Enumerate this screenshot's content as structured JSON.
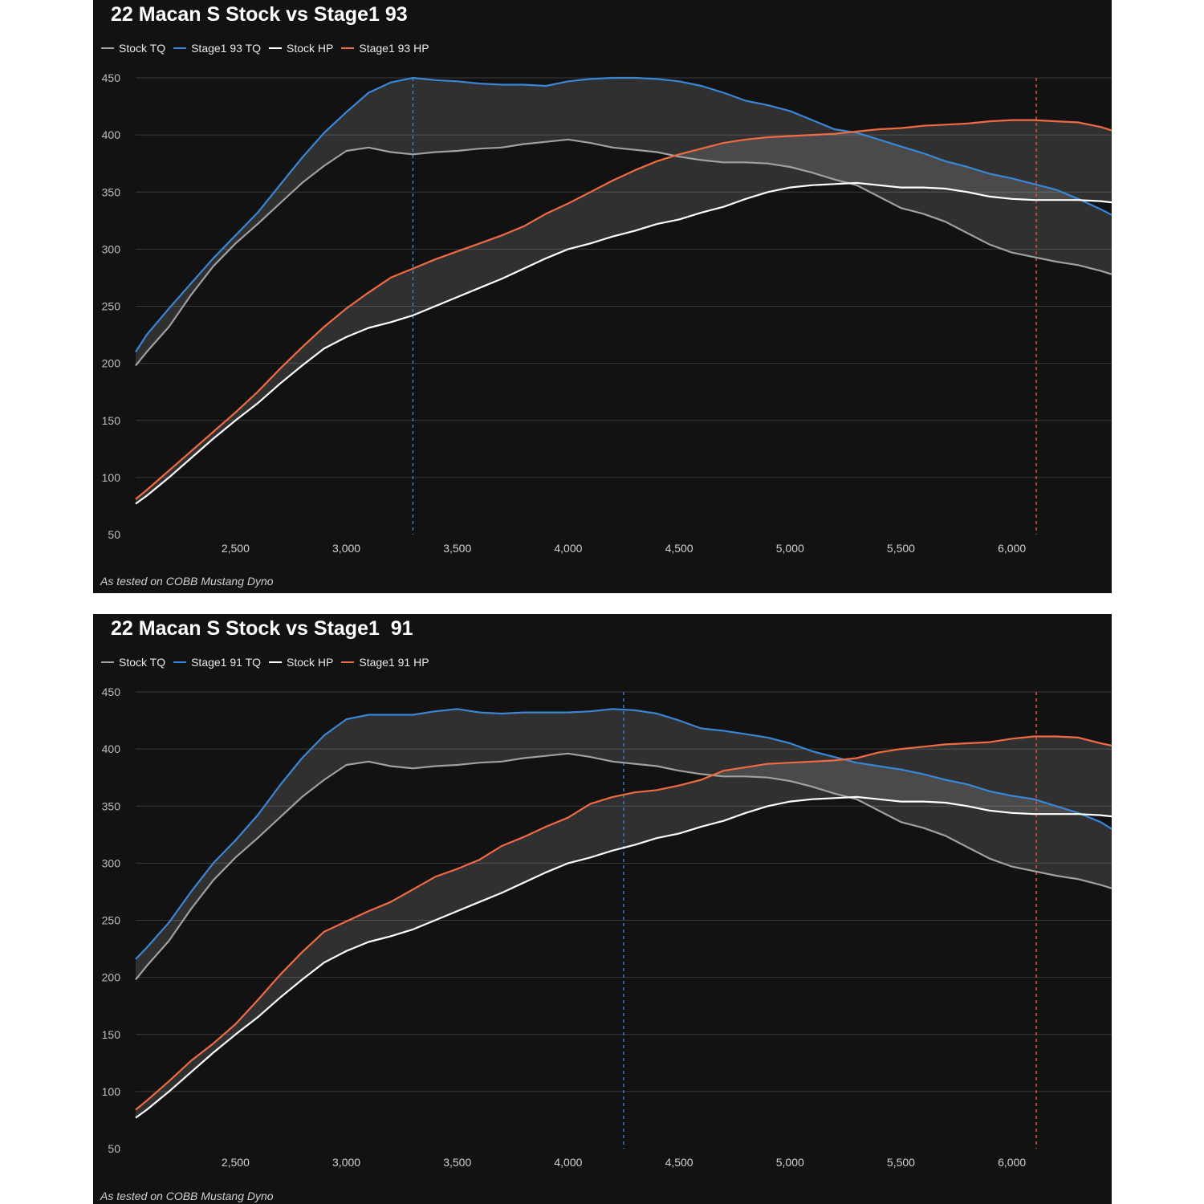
{
  "chart_data": [
    {
      "type": "line",
      "title": "22 Macan S Stock vs Stage1 93",
      "footnote": "As tested on COBB Mustang Dyno",
      "xlabel": "",
      "ylabel": "",
      "xlim": [
        2050,
        6450
      ],
      "ylim": [
        50,
        450
      ],
      "x_ticks": [
        2500,
        3000,
        3500,
        4000,
        4500,
        5000,
        5500,
        6000
      ],
      "x_tick_labels": [
        "2,500",
        "3,000",
        "3,500",
        "4,000",
        "4,500",
        "5,000",
        "5,500",
        "6,000"
      ],
      "y_ticks": [
        50,
        100,
        150,
        200,
        250,
        300,
        350,
        400,
        450
      ],
      "y_tick_labels": [
        "50",
        "100",
        "150",
        "200",
        "250",
        "300",
        "350",
        "400",
        "450"
      ],
      "grid": true,
      "legend_position": "top-left",
      "markers": [
        {
          "x": 3300,
          "color": "#3a7bbf"
        },
        {
          "x": 6110,
          "color": "#d2573a"
        }
      ],
      "bands": [
        [
          0,
          1
        ],
        [
          2,
          3
        ]
      ],
      "series": [
        {
          "name": "Stock TQ",
          "color": "#a0a0a0",
          "x": [
            2050,
            2100,
            2200,
            2300,
            2400,
            2500,
            2600,
            2700,
            2800,
            2900,
            3000,
            3100,
            3200,
            3300,
            3400,
            3500,
            3600,
            3700,
            3800,
            3900,
            4000,
            4100,
            4200,
            4300,
            4400,
            4500,
            4600,
            4700,
            4800,
            4900,
            5000,
            5100,
            5200,
            5300,
            5400,
            5500,
            5600,
            5700,
            5800,
            5900,
            6000,
            6100,
            6200,
            6300,
            6400,
            6450
          ],
          "values": [
            198,
            210,
            232,
            260,
            285,
            305,
            322,
            340,
            358,
            373,
            386,
            389,
            385,
            383,
            385,
            386,
            388,
            389,
            392,
            394,
            396,
            393,
            389,
            387,
            385,
            381,
            378,
            376,
            376,
            375,
            372,
            367,
            361,
            356,
            346,
            336,
            331,
            324,
            314,
            304,
            297,
            293,
            289,
            286,
            281,
            278
          ]
        },
        {
          "name": "Stage1 93 TQ",
          "color": "#3a86d6",
          "x": [
            2050,
            2100,
            2200,
            2300,
            2400,
            2500,
            2600,
            2700,
            2800,
            2900,
            3000,
            3100,
            3200,
            3300,
            3400,
            3500,
            3600,
            3700,
            3800,
            3900,
            4000,
            4100,
            4200,
            4300,
            4400,
            4500,
            4600,
            4700,
            4800,
            4900,
            5000,
            5100,
            5200,
            5300,
            5400,
            5500,
            5600,
            5700,
            5800,
            5900,
            6000,
            6100,
            6200,
            6300,
            6400,
            6450
          ],
          "values": [
            210,
            225,
            248,
            270,
            292,
            312,
            332,
            356,
            380,
            402,
            420,
            437,
            446,
            450,
            448,
            447,
            445,
            444,
            444,
            443,
            447,
            449,
            450,
            450,
            449,
            447,
            443,
            437,
            430,
            426,
            421,
            413,
            405,
            402,
            396,
            390,
            384,
            377,
            372,
            366,
            362,
            357,
            352,
            344,
            335,
            330
          ]
        },
        {
          "name": "Stock HP",
          "color": "#ffffff",
          "x": [
            2050,
            2100,
            2200,
            2300,
            2400,
            2500,
            2600,
            2700,
            2800,
            2900,
            3000,
            3100,
            3200,
            3300,
            3400,
            3500,
            3600,
            3700,
            3800,
            3900,
            4000,
            4100,
            4200,
            4300,
            4400,
            4500,
            4600,
            4700,
            4800,
            4900,
            5000,
            5100,
            5200,
            5300,
            5400,
            5500,
            5600,
            5700,
            5800,
            5900,
            6000,
            6100,
            6200,
            6300,
            6400,
            6450
          ],
          "values": [
            77,
            84,
            100,
            117,
            134,
            150,
            165,
            182,
            198,
            213,
            223,
            231,
            236,
            242,
            250,
            258,
            266,
            274,
            283,
            292,
            300,
            305,
            311,
            316,
            322,
            326,
            332,
            337,
            344,
            350,
            354,
            356,
            357,
            358,
            356,
            354,
            354,
            353,
            350,
            346,
            344,
            343,
            343,
            343,
            342,
            341
          ]
        },
        {
          "name": "Stage1 93 HP",
          "color": "#f06a43",
          "x": [
            2050,
            2100,
            2200,
            2300,
            2400,
            2500,
            2600,
            2700,
            2800,
            2900,
            3000,
            3100,
            3200,
            3300,
            3400,
            3500,
            3600,
            3700,
            3800,
            3900,
            4000,
            4100,
            4200,
            4300,
            4400,
            4500,
            4600,
            4700,
            4800,
            4900,
            5000,
            5100,
            5200,
            5300,
            5400,
            5500,
            5600,
            5700,
            5800,
            5900,
            6000,
            6100,
            6200,
            6300,
            6400,
            6450
          ],
          "values": [
            81,
            89,
            106,
            123,
            140,
            157,
            175,
            195,
            214,
            232,
            248,
            262,
            275,
            283,
            291,
            298,
            305,
            312,
            320,
            331,
            340,
            350,
            360,
            369,
            377,
            383,
            388,
            393,
            396,
            398,
            399,
            400,
            401,
            403,
            405,
            406,
            408,
            409,
            410,
            412,
            413,
            413,
            412,
            411,
            407,
            404
          ]
        }
      ]
    },
    {
      "type": "line",
      "title": "22 Macan S Stock vs Stage1  91",
      "footnote": "As tested on COBB Mustang Dyno",
      "xlabel": "",
      "ylabel": "",
      "xlim": [
        2050,
        6450
      ],
      "ylim": [
        50,
        450
      ],
      "x_ticks": [
        2500,
        3000,
        3500,
        4000,
        4500,
        5000,
        5500,
        6000
      ],
      "x_tick_labels": [
        "2,500",
        "3,000",
        "3,500",
        "4,000",
        "4,500",
        "5,000",
        "5,500",
        "6,000"
      ],
      "y_ticks": [
        50,
        100,
        150,
        200,
        250,
        300,
        350,
        400,
        450
      ],
      "y_tick_labels": [
        "50",
        "100",
        "150",
        "200",
        "250",
        "300",
        "350",
        "400",
        "450"
      ],
      "grid": true,
      "legend_position": "top-left",
      "markers": [
        {
          "x": 4250,
          "color": "#3a7bbf"
        },
        {
          "x": 6110,
          "color": "#d2573a"
        }
      ],
      "bands": [
        [
          0,
          1
        ],
        [
          2,
          3
        ]
      ],
      "series": [
        {
          "name": "Stock TQ",
          "color": "#a0a0a0",
          "x": [
            2050,
            2100,
            2200,
            2300,
            2400,
            2500,
            2600,
            2700,
            2800,
            2900,
            3000,
            3100,
            3200,
            3300,
            3400,
            3500,
            3600,
            3700,
            3800,
            3900,
            4000,
            4100,
            4200,
            4300,
            4400,
            4500,
            4600,
            4700,
            4800,
            4900,
            5000,
            5100,
            5200,
            5300,
            5400,
            5500,
            5600,
            5700,
            5800,
            5900,
            6000,
            6100,
            6200,
            6300,
            6400,
            6450
          ],
          "values": [
            198,
            210,
            232,
            260,
            285,
            305,
            322,
            340,
            358,
            373,
            386,
            389,
            385,
            383,
            385,
            386,
            388,
            389,
            392,
            394,
            396,
            393,
            389,
            387,
            385,
            381,
            378,
            376,
            376,
            375,
            372,
            367,
            361,
            356,
            346,
            336,
            331,
            324,
            314,
            304,
            297,
            293,
            289,
            286,
            281,
            278
          ]
        },
        {
          "name": "Stage1 91 TQ",
          "color": "#3a86d6",
          "x": [
            2050,
            2100,
            2200,
            2300,
            2400,
            2500,
            2600,
            2700,
            2800,
            2900,
            3000,
            3100,
            3200,
            3300,
            3400,
            3500,
            3600,
            3700,
            3800,
            3900,
            4000,
            4100,
            4200,
            4300,
            4400,
            4500,
            4600,
            4700,
            4800,
            4900,
            5000,
            5100,
            5200,
            5300,
            5400,
            5500,
            5600,
            5700,
            5800,
            5900,
            6000,
            6100,
            6200,
            6300,
            6400,
            6450
          ],
          "values": [
            216,
            226,
            248,
            275,
            300,
            320,
            342,
            368,
            392,
            412,
            426,
            430,
            430,
            430,
            433,
            435,
            432,
            431,
            432,
            432,
            432,
            433,
            435,
            434,
            431,
            425,
            418,
            416,
            413,
            410,
            405,
            398,
            393,
            388,
            385,
            382,
            378,
            373,
            369,
            363,
            359,
            356,
            350,
            344,
            336,
            330
          ]
        },
        {
          "name": "Stock HP",
          "color": "#ffffff",
          "x": [
            2050,
            2100,
            2200,
            2300,
            2400,
            2500,
            2600,
            2700,
            2800,
            2900,
            3000,
            3100,
            3200,
            3300,
            3400,
            3500,
            3600,
            3700,
            3800,
            3900,
            4000,
            4100,
            4200,
            4300,
            4400,
            4500,
            4600,
            4700,
            4800,
            4900,
            5000,
            5100,
            5200,
            5300,
            5400,
            5500,
            5600,
            5700,
            5800,
            5900,
            6000,
            6100,
            6200,
            6300,
            6400,
            6450
          ],
          "values": [
            77,
            84,
            100,
            117,
            134,
            150,
            165,
            182,
            198,
            213,
            223,
            231,
            236,
            242,
            250,
            258,
            266,
            274,
            283,
            292,
            300,
            305,
            311,
            316,
            322,
            326,
            332,
            337,
            344,
            350,
            354,
            356,
            357,
            358,
            356,
            354,
            354,
            353,
            350,
            346,
            344,
            343,
            343,
            343,
            342,
            341
          ]
        },
        {
          "name": "Stage1 91 HP",
          "color": "#f06a43",
          "x": [
            2050,
            2100,
            2200,
            2300,
            2400,
            2500,
            2600,
            2700,
            2800,
            2900,
            3000,
            3100,
            3200,
            3300,
            3400,
            3500,
            3600,
            3700,
            3800,
            3900,
            4000,
            4100,
            4200,
            4300,
            4400,
            4500,
            4600,
            4700,
            4800,
            4900,
            5000,
            5100,
            5200,
            5300,
            5400,
            5500,
            5600,
            5700,
            5800,
            5900,
            6000,
            6100,
            6200,
            6300,
            6400,
            6450
          ],
          "values": [
            84,
            92,
            109,
            127,
            142,
            159,
            180,
            202,
            222,
            240,
            249,
            258,
            266,
            277,
            288,
            295,
            303,
            315,
            323,
            332,
            340,
            352,
            358,
            362,
            364,
            368,
            373,
            381,
            384,
            387,
            388,
            389,
            390,
            392,
            397,
            400,
            402,
            404,
            405,
            406,
            409,
            411,
            411,
            410,
            405,
            403
          ]
        }
      ]
    }
  ]
}
